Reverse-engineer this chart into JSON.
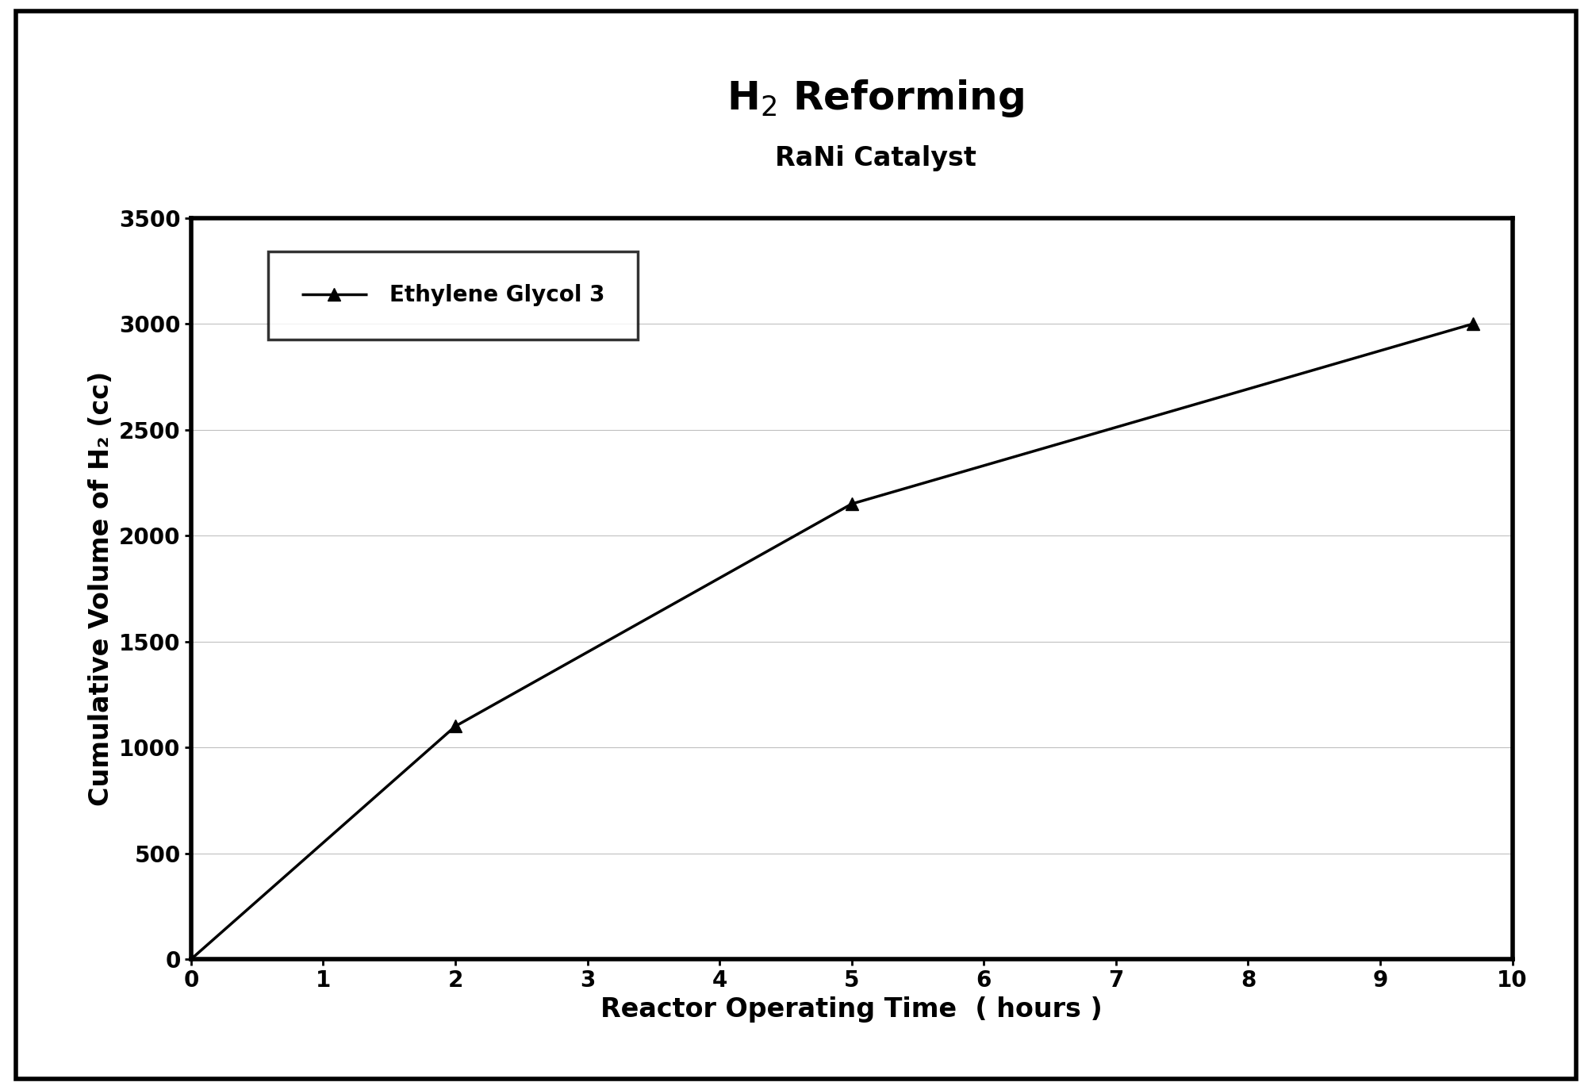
{
  "title_line1": "H$_2$ Reforming",
  "title_line2": "RaNi Catalyst",
  "xlabel": "Reactor Operating Time  ( hours )",
  "ylabel": "Cumulative Volume of H₂ (cc)",
  "xlim": [
    0,
    10
  ],
  "ylim": [
    0,
    3500
  ],
  "xticks": [
    0,
    1,
    2,
    3,
    4,
    5,
    6,
    7,
    8,
    9,
    10
  ],
  "yticks": [
    0,
    500,
    1000,
    1500,
    2000,
    2500,
    3000,
    3500
  ],
  "series": [
    {
      "label": "Ethylene Glycol 3",
      "x": [
        0,
        2,
        5,
        9.7
      ],
      "y": [
        0,
        1100,
        2150,
        3000
      ],
      "color": "black",
      "marker": "^",
      "linewidth": 2.5,
      "markersize": 11
    }
  ],
  "background_color": "#ffffff",
  "title_fontsize": 36,
  "subtitle_fontsize": 24,
  "label_fontsize": 24,
  "tick_fontsize": 20,
  "legend_fontsize": 20,
  "outer_border_linewidth": 4,
  "inner_spine_linewidth": 4,
  "grid_color": "#c0c0c0",
  "grid_linewidth": 0.8
}
